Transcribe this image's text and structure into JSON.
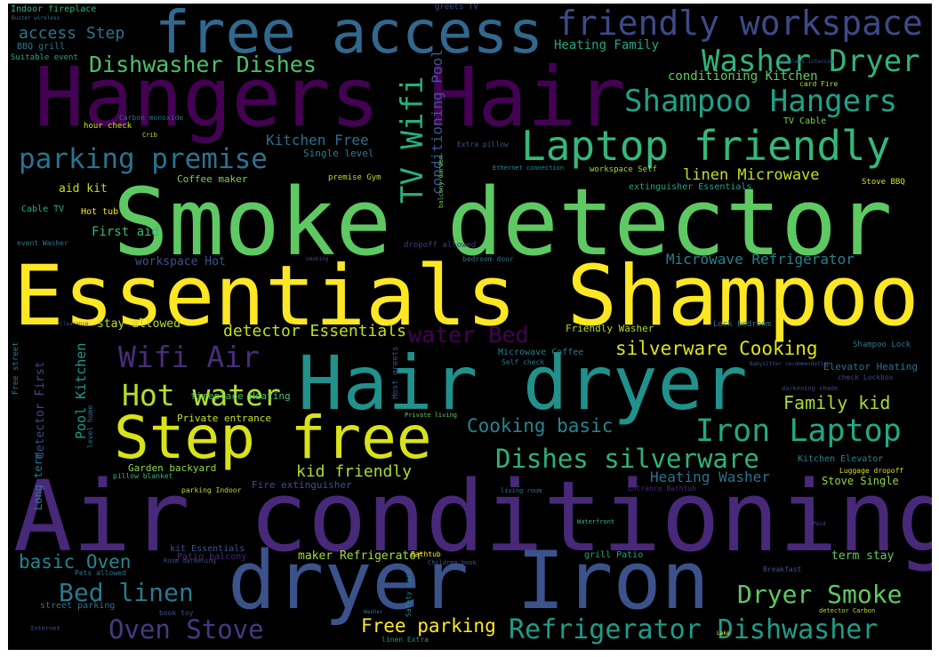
{
  "wordcloud": {
    "background": "#000000",
    "words": [
      {
        "text": "Smoke detector",
        "color": "#5ec962"
      },
      {
        "text": "Essentials Shampoo",
        "color": "#fde725"
      },
      {
        "text": "Air conditioning",
        "color": "#482878"
      },
      {
        "text": "Hangers Hair",
        "color": "#440154"
      },
      {
        "text": "Hair dryer",
        "color": "#21918c"
      },
      {
        "text": "dryer Iron",
        "color": "#3b528b"
      },
      {
        "text": "free access",
        "color": "#31688e"
      },
      {
        "text": "Step free",
        "color": "#d8e219"
      },
      {
        "text": "Laptop friendly",
        "color": "#35b779"
      },
      {
        "text": "friendly workspace",
        "color": "#3e4989"
      },
      {
        "text": "Washer Dryer",
        "color": "#2fb47c"
      },
      {
        "text": "Shampoo Hangers",
        "color": "#1fa187"
      },
      {
        "text": "Dishwasher Dishes",
        "color": "#4ac16d"
      },
      {
        "text": "parking premise",
        "color": "#2c728e"
      },
      {
        "text": "TV Wifi",
        "color": "#29af7f"
      },
      {
        "text": "Hot water",
        "color": "#b5de2b"
      },
      {
        "text": "Wifi Air",
        "color": "#472d7b"
      },
      {
        "text": "water Bed",
        "color": "#440154"
      },
      {
        "text": "Iron Laptop",
        "color": "#22a884"
      },
      {
        "text": "Dishes silverware",
        "color": "#2db27d"
      },
      {
        "text": "Cooking basic",
        "color": "#25858e"
      },
      {
        "text": "silverware Cooking",
        "color": "#dde318"
      },
      {
        "text": "Refrigerator Dishwasher",
        "color": "#1e9c89"
      },
      {
        "text": "Dryer Smoke",
        "color": "#5ec962"
      },
      {
        "text": "Oven Stove",
        "color": "#443a83"
      },
      {
        "text": "Bed linen",
        "color": "#2a788e"
      },
      {
        "text": "Free parking",
        "color": "#fde725"
      },
      {
        "text": "basic Oven",
        "color": "#24868e"
      },
      {
        "text": "Family kid",
        "color": "#a8db34"
      },
      {
        "text": "kid friendly",
        "color": "#addc30"
      },
      {
        "text": "detector Essentials",
        "color": "#bddf26"
      },
      {
        "text": "Kitchen Free",
        "color": "#2e6e8e"
      },
      {
        "text": "conditioning Kitchen",
        "color": "#63cb5f"
      },
      {
        "text": "conditioning Pool",
        "color": "#38598c"
      },
      {
        "text": "linen Microwave",
        "color": "#c0df25"
      },
      {
        "text": "Microwave Refrigerator",
        "color": "#27808e"
      },
      {
        "text": "Heating Washer",
        "color": "#2c728e"
      },
      {
        "text": "Pool Kitchen",
        "color": "#1f988b"
      },
      {
        "text": "access Step",
        "color": "#2b758e"
      },
      {
        "text": "Heating Family",
        "color": "#21a685"
      },
      {
        "text": "maker Refrigerator",
        "color": "#a2da37"
      },
      {
        "text": "First aid",
        "color": "#35b779"
      },
      {
        "text": "aid kit",
        "color": "#c2df23"
      },
      {
        "text": "workspace Hot",
        "color": "#3b518b"
      },
      {
        "text": "stay allowed",
        "color": "#b8de29"
      },
      {
        "text": "Private entrance",
        "color": "#c5e021"
      },
      {
        "text": "Coffee maker",
        "color": "#7ad151"
      },
      {
        "text": "fireplace Heating",
        "color": "#4ac16d"
      },
      {
        "text": "Garden backyard",
        "color": "#90d743"
      },
      {
        "text": "Fire extinguisher",
        "color": "#3a538b"
      },
      {
        "text": "Long term",
        "color": "#287c8e"
      },
      {
        "text": "detector First",
        "color": "#3e4a89"
      },
      {
        "text": "Indoor fireplace",
        "color": "#35b779"
      },
      {
        "text": "BBQ grill",
        "color": "#2a788e"
      },
      {
        "text": "Suitable event",
        "color": "#22a884"
      },
      {
        "text": "Buzzer wireless",
        "color": "#2f6c8e"
      },
      {
        "text": "greets TV",
        "color": "#3e4c8a"
      },
      {
        "text": "Wireless intercom",
        "color": "#3b528b"
      },
      {
        "text": "card Fire",
        "color": "#b5de2b"
      },
      {
        "text": "TV Cable",
        "color": "#7ad151"
      },
      {
        "text": "hour check",
        "color": "#d0e11c"
      },
      {
        "text": "Carbon monoxide",
        "color": "#31688e"
      },
      {
        "text": "Crib",
        "color": "#bddf26"
      },
      {
        "text": "Single level",
        "color": "#27808e"
      },
      {
        "text": "Extra pillow",
        "color": "#3b528b"
      },
      {
        "text": "balcony Garden",
        "color": "#6ccd5a"
      },
      {
        "text": "Ethernet connection",
        "color": "#21918c"
      },
      {
        "text": "workspace Self",
        "color": "#a0da39"
      },
      {
        "text": "extinguisher Essentials",
        "color": "#20a486"
      },
      {
        "text": "Stove BBQ",
        "color": "#d8e219"
      },
      {
        "text": "Cable TV",
        "color": "#29af7f"
      },
      {
        "text": "Hot tub",
        "color": "#fde725"
      },
      {
        "text": "premise Gym",
        "color": "#b5de2b"
      },
      {
        "text": "event Washer",
        "color": "#2a788e"
      },
      {
        "text": "dropoff allowed",
        "color": "#443983"
      },
      {
        "text": "bedroom door",
        "color": "#2c728e"
      },
      {
        "text": "Luggage dropoff",
        "color": "#d2e21b"
      },
      {
        "text": "smoking",
        "color": "#3e4c8a"
      },
      {
        "text": "Lock bedroom",
        "color": "#2c728e"
      },
      {
        "text": "Friendly Washer",
        "color": "#b0dd2f"
      },
      {
        "text": "Microwave Coffee",
        "color": "#287c8e"
      },
      {
        "text": "Self check",
        "color": "#2a788e"
      },
      {
        "text": "Babysitter recommendation",
        "color": "#3b528b"
      },
      {
        "text": "Shampoo Lock",
        "color": "#2a788e"
      },
      {
        "text": "Elevator Heating",
        "color": "#2d708e"
      },
      {
        "text": "check Lockbox",
        "color": "#3e4989"
      },
      {
        "text": "darkening shade",
        "color": "#414487"
      },
      {
        "text": "Private living",
        "color": "#5ec962"
      },
      {
        "text": "Host greets",
        "color": "#3b528b"
      },
      {
        "text": "Free street",
        "color": "#2a788e"
      },
      {
        "text": "clearance",
        "color": "#3e4989"
      },
      {
        "text": "level home",
        "color": "#2c728e"
      },
      {
        "text": "pillow blanket",
        "color": "#35b779"
      },
      {
        "text": "parking Indoor",
        "color": "#b5de2b"
      },
      {
        "text": "Kitchen Elevator",
        "color": "#25858e"
      },
      {
        "text": "Stove Single",
        "color": "#8fd744"
      },
      {
        "text": "living room",
        "color": "#2c728e"
      },
      {
        "text": "Entrance Bathtub",
        "color": "#482878"
      },
      {
        "text": "Waterfront",
        "color": "#35b779"
      },
      {
        "text": "kit Essentials",
        "color": "#39568c"
      },
      {
        "text": "Patio balcony",
        "color": "#482878"
      },
      {
        "text": "Room darkening",
        "color": "#3b528b"
      },
      {
        "text": "Pets allowed",
        "color": "#2a788e"
      },
      {
        "text": "Children book",
        "color": "#3b528b"
      },
      {
        "text": "Bathtub",
        "color": "#fde725"
      },
      {
        "text": "grill Patio",
        "color": "#21a685"
      },
      {
        "text": "Safety card",
        "color": "#24868e"
      },
      {
        "text": "term stay",
        "color": "#5ec962"
      },
      {
        "text": "Breakfast",
        "color": "#3b528b"
      },
      {
        "text": "street parking",
        "color": "#2c728e"
      },
      {
        "text": "book toy",
        "color": "#3b528b"
      },
      {
        "text": "Internet",
        "color": "#3e4c8a"
      },
      {
        "text": "linen Extra",
        "color": "#21918c"
      },
      {
        "text": "detector Carbon",
        "color": "#c2df23"
      },
      {
        "text": "Washer",
        "color": "#2a788e"
      },
      {
        "text": "Lake",
        "color": "#fde725"
      },
      {
        "text": "Paid",
        "color": "#3e4989"
      }
    ]
  }
}
